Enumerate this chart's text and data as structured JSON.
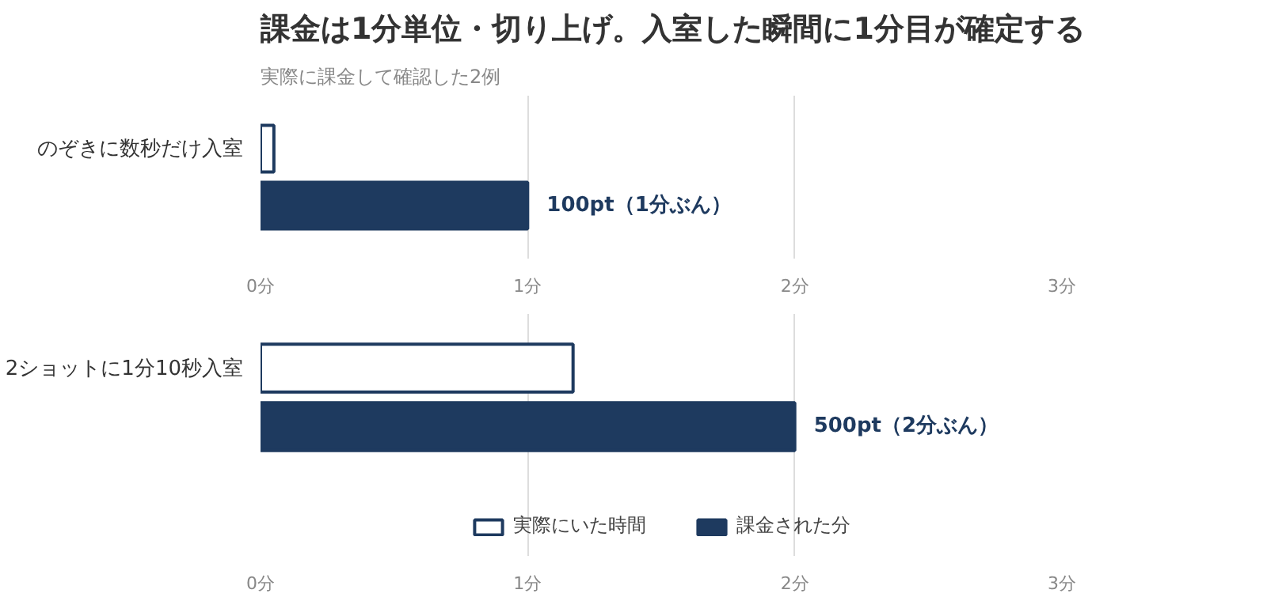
{
  "chart_data": [
    {
      "type": "bar",
      "orientation": "horizontal",
      "title": "課金は1分単位・切り上げ。入室した瞬間に1分目が確定する",
      "subtitle": "実際に課金して確認した2例",
      "categories": [
        "のぞきに数秒だけ入室"
      ],
      "series": [
        {
          "color": "#ffffff",
          "values": [
            0.05
          ]
        },
        {
          "color": "#1e3a5f",
          "values": [
            1
          ],
          "value_labels": [
            "100pt（1分ぶん）"
          ]
        }
      ],
      "xlim": [
        0,
        3
      ],
      "xticks": [
        {
          "value": 0,
          "label": "0分"
        },
        {
          "value": 1,
          "label": "1分"
        },
        {
          "value": 2,
          "label": "2分"
        },
        {
          "value": 3,
          "label": "3分"
        }
      ],
      "grid": "x",
      "legend": false
    },
    {
      "type": "bar",
      "orientation": "horizontal",
      "categories": [
        "2ショットに1分10秒入室"
      ],
      "series": [
        {
          "name": "実際にいた時間",
          "color": "#ffffff",
          "values": [
            1.17
          ]
        },
        {
          "name": "課金された分",
          "color": "#1e3a5f",
          "values": [
            2
          ],
          "value_labels": [
            "500pt（2分ぶん）"
          ]
        }
      ],
      "xlim": [
        0,
        3
      ],
      "xticks": [
        {
          "value": 0,
          "label": "0分"
        },
        {
          "value": 1,
          "label": "1分"
        },
        {
          "value": 2,
          "label": "2分"
        },
        {
          "value": 3,
          "label": "3分"
        }
      ],
      "grid": "x",
      "legend": "bottom"
    }
  ]
}
